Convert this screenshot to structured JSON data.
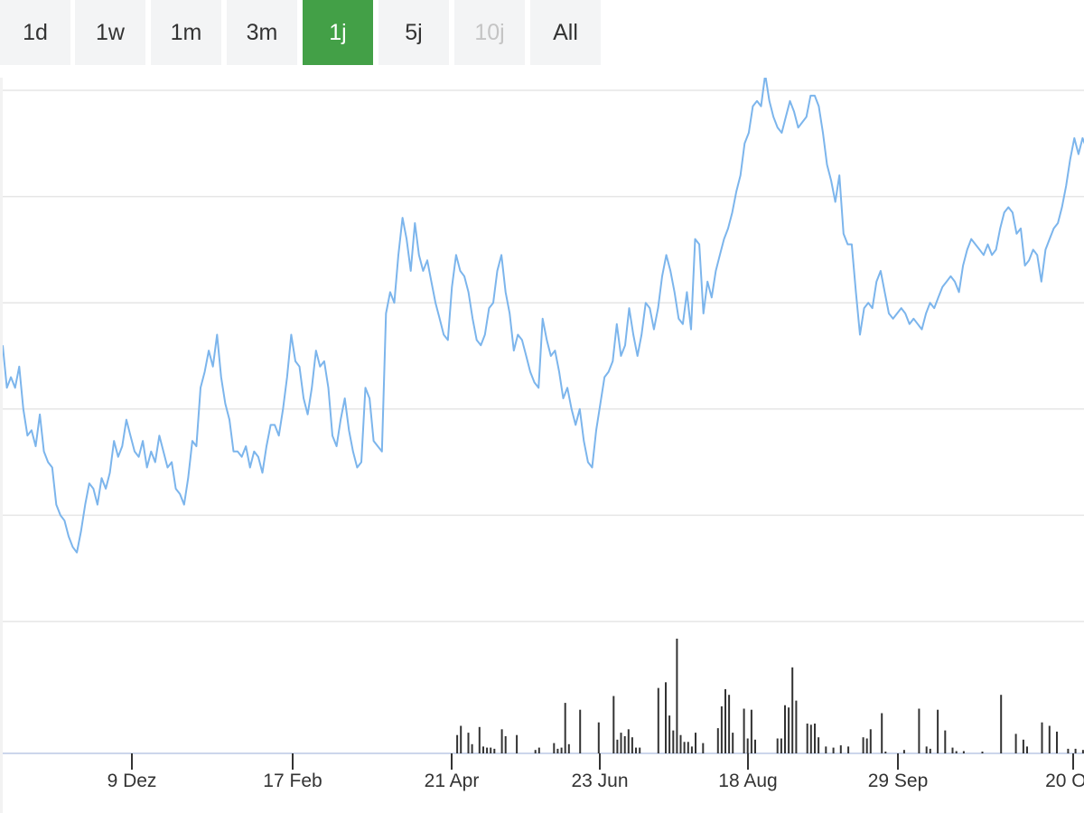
{
  "range_selector": {
    "buttons": [
      {
        "label": "1d",
        "state": "normal"
      },
      {
        "label": "1w",
        "state": "normal"
      },
      {
        "label": "1m",
        "state": "normal"
      },
      {
        "label": "3m",
        "state": "normal"
      },
      {
        "label": "1j",
        "state": "active"
      },
      {
        "label": "5j",
        "state": "normal"
      },
      {
        "label": "10j",
        "state": "disabled"
      },
      {
        "label": "All",
        "state": "normal"
      }
    ],
    "active_color": "#43a047"
  },
  "chart_data": {
    "type": "line",
    "title": "",
    "xlabel": "",
    "ylabel": "",
    "y_axis_labels_visible": false,
    "grid": true,
    "line_color": "#7cb5ec",
    "volume_color": "#333333",
    "x_ticks": [
      "9 Dez",
      "17 Feb",
      "21 Apr",
      "23 Jun",
      "18 Aug",
      "29 Sep",
      "20 Okt"
    ],
    "price_note": "relative price level, 0 = bottom gridline, 5 = top gridline",
    "price": [
      2.6,
      2.2,
      2.3,
      2.2,
      2.4,
      2.0,
      1.75,
      1.8,
      1.65,
      1.95,
      1.6,
      1.5,
      1.45,
      1.1,
      1.0,
      0.95,
      0.8,
      0.7,
      0.65,
      0.85,
      1.1,
      1.3,
      1.25,
      1.1,
      1.35,
      1.25,
      1.4,
      1.7,
      1.55,
      1.65,
      1.9,
      1.75,
      1.6,
      1.55,
      1.7,
      1.45,
      1.6,
      1.5,
      1.75,
      1.6,
      1.45,
      1.5,
      1.25,
      1.2,
      1.1,
      1.35,
      1.7,
      1.65,
      2.2,
      2.35,
      2.55,
      2.4,
      2.7,
      2.3,
      2.05,
      1.9,
      1.6,
      1.6,
      1.55,
      1.65,
      1.45,
      1.6,
      1.55,
      1.4,
      1.65,
      1.85,
      1.85,
      1.75,
      2.0,
      2.3,
      2.7,
      2.45,
      2.4,
      2.1,
      1.95,
      2.2,
      2.55,
      2.4,
      2.45,
      2.2,
      1.75,
      1.65,
      1.9,
      2.1,
      1.8,
      1.6,
      1.45,
      1.5,
      2.2,
      2.1,
      1.7,
      1.65,
      1.6,
      2.9,
      3.1,
      3.0,
      3.45,
      3.8,
      3.6,
      3.3,
      3.75,
      3.45,
      3.3,
      3.4,
      3.2,
      3.0,
      2.85,
      2.7,
      2.65,
      3.15,
      3.45,
      3.3,
      3.25,
      3.1,
      2.85,
      2.65,
      2.6,
      2.7,
      2.95,
      3.0,
      3.3,
      3.45,
      3.1,
      2.9,
      2.55,
      2.7,
      2.65,
      2.5,
      2.35,
      2.25,
      2.2,
      2.85,
      2.65,
      2.5,
      2.55,
      2.35,
      2.1,
      2.2,
      2.0,
      1.85,
      2.0,
      1.7,
      1.5,
      1.45,
      1.8,
      2.05,
      2.3,
      2.35,
      2.45,
      2.8,
      2.5,
      2.6,
      2.95,
      2.7,
      2.5,
      2.7,
      3.0,
      2.95,
      2.75,
      2.95,
      3.25,
      3.45,
      3.3,
      3.1,
      2.85,
      2.8,
      3.1,
      2.75,
      3.6,
      3.55,
      2.9,
      3.2,
      3.05,
      3.3,
      3.45,
      3.6,
      3.7,
      3.85,
      4.05,
      4.2,
      4.5,
      4.6,
      4.85,
      4.9,
      4.85,
      5.15,
      4.9,
      4.75,
      4.65,
      4.6,
      4.75,
      4.9,
      4.8,
      4.65,
      4.7,
      4.75,
      4.95,
      4.95,
      4.85,
      4.6,
      4.3,
      4.15,
      3.95,
      4.2,
      3.65,
      3.55,
      3.55,
      3.1,
      2.7,
      2.95,
      3.0,
      2.95,
      3.2,
      3.3,
      3.1,
      2.9,
      2.85,
      2.9,
      2.95,
      2.9,
      2.8,
      2.85,
      2.8,
      2.75,
      2.9,
      3.0,
      2.95,
      3.05,
      3.15,
      3.2,
      3.25,
      3.2,
      3.1,
      3.35,
      3.5,
      3.6,
      3.55,
      3.5,
      3.45,
      3.55,
      3.45,
      3.5,
      3.7,
      3.85,
      3.9,
      3.85,
      3.65,
      3.7,
      3.35,
      3.4,
      3.5,
      3.45,
      3.2,
      3.5,
      3.6,
      3.7,
      3.75,
      3.9,
      4.1,
      4.35,
      4.55,
      4.4,
      4.55,
      4.45
    ],
    "volume_note": "relative volume, 1 = tallest bar",
    "volume": [
      0,
      0,
      0,
      0,
      0,
      0,
      0,
      0,
      0,
      0,
      0,
      0,
      0,
      0,
      0,
      0,
      0,
      0,
      0,
      0,
      0,
      0,
      0,
      0,
      0,
      0,
      0,
      0,
      0,
      0,
      0,
      0,
      0,
      0,
      0,
      0,
      0,
      0,
      0,
      0,
      0,
      0,
      0,
      0,
      0,
      0,
      0,
      0,
      0,
      0,
      0,
      0,
      0,
      0,
      0,
      0,
      0,
      0,
      0,
      0,
      0,
      0,
      0,
      0,
      0,
      0,
      0,
      0,
      0,
      0,
      0,
      0,
      0,
      0,
      0,
      0,
      0,
      0,
      0,
      0,
      0,
      0,
      0,
      0,
      0,
      0,
      0,
      0,
      0,
      0,
      0,
      0,
      0,
      0,
      0,
      0,
      0,
      0,
      0,
      0,
      0,
      0,
      0,
      0,
      0,
      0,
      0,
      0,
      0,
      0,
      0,
      0,
      0,
      0,
      0,
      0,
      0,
      0,
      0,
      0,
      0,
      0,
      0.16,
      0.24,
      0,
      0.18,
      0.08,
      0,
      0.23,
      0.06,
      0.05,
      0.05,
      0.04,
      0,
      0.21,
      0.15,
      0,
      0,
      0.16,
      0,
      0,
      0,
      0,
      0.03,
      0.05,
      0,
      0,
      0,
      0.09,
      0.04,
      0.05,
      0.44,
      0.08,
      0,
      0,
      0.38,
      0,
      0,
      0,
      0,
      0.27,
      0,
      0,
      0,
      0.5,
      0.12,
      0.18,
      0.15,
      0.21,
      0.14,
      0.05,
      0.05,
      0,
      0,
      0,
      0,
      0.57,
      0,
      0.62,
      0.33,
      0.2,
      1.0,
      0.16,
      0.1,
      0.1,
      0.06,
      0.18,
      0,
      0.09,
      0,
      0,
      0,
      0.22,
      0.41,
      0.56,
      0.51,
      0.18,
      0,
      0,
      0.39,
      0.13,
      0.38,
      0.12,
      0,
      0,
      0,
      0,
      0,
      0.13,
      0.13,
      0.42,
      0.4,
      0.75,
      0.46,
      0,
      0,
      0.26,
      0.25,
      0.26,
      0.14,
      0,
      0.06,
      0,
      0.05,
      0,
      0.07,
      0,
      0.06,
      0,
      0,
      0,
      0.14,
      0.13,
      0.21,
      0,
      0,
      0.35,
      0.01,
      0,
      0,
      0,
      0,
      0.03,
      0,
      0,
      0,
      0.39,
      0,
      0.06,
      0.04,
      0,
      0.38,
      0,
      0.2,
      0,
      0.05,
      0.02,
      0,
      0.02,
      0,
      0,
      0,
      0,
      0.01,
      0,
      0,
      0,
      0,
      0.51,
      0,
      0,
      0,
      0.17,
      0,
      0.12,
      0.06,
      0,
      0,
      0,
      0.27,
      0,
      0.24,
      0,
      0.19,
      0,
      0,
      0.04,
      0,
      0.04,
      0,
      0.03,
      0.07
    ]
  }
}
